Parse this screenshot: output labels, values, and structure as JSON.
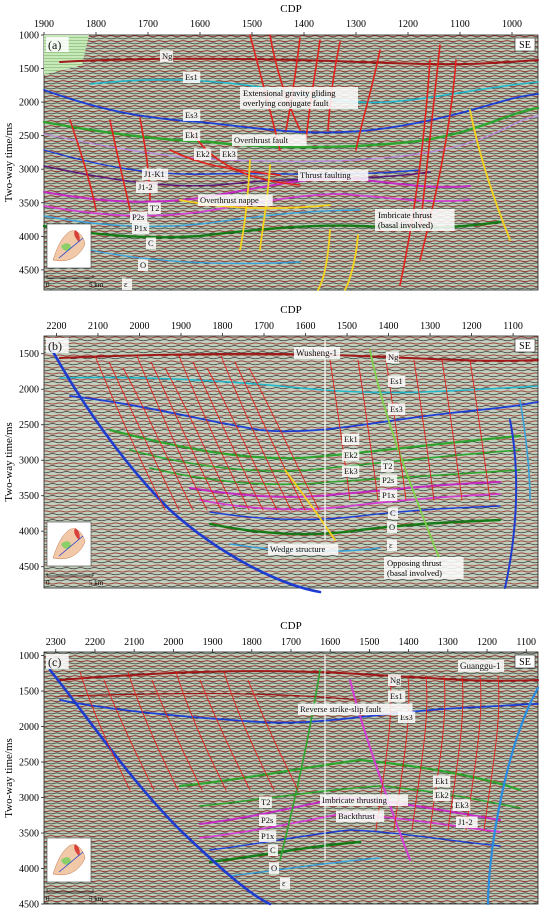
{
  "figure": {
    "y_axis_label": "Two-way time/ms",
    "x_axis_label": "CDP",
    "direction_label": "SE",
    "scale_label": "5 km",
    "scale_zero": "0"
  },
  "panels": [
    {
      "id": "a",
      "tag": "(a)",
      "cdp_ticks": [
        "1900",
        "1800",
        "1700",
        "1600",
        "1500",
        "1400",
        "1300",
        "1200",
        "1100",
        "1000"
      ],
      "time_ticks": [
        "1000",
        "1500",
        "2000",
        "2500",
        "3000",
        "3500",
        "4000",
        "4500"
      ],
      "horizon_labels": [
        "Ng",
        "Es1",
        "Es3",
        "Ek1",
        "Ek2",
        "Ek3",
        "J1-K1",
        "J1-2",
        "T2",
        "P2s",
        "P1x",
        "C",
        "O",
        "ε"
      ],
      "annotations": [
        "Extensional gravity gliding overlying conjugate fault",
        "Overthrust fault",
        "Thrust faulting",
        "Overthrust nappe",
        "Imbricate thrust (basal involved)"
      ]
    },
    {
      "id": "b",
      "tag": "(b)",
      "cdp_ticks": [
        "2200",
        "2100",
        "2000",
        "1900",
        "1800",
        "1700",
        "1600",
        "1500",
        "1400",
        "1300",
        "1200",
        "1100"
      ],
      "time_ticks": [
        "1500",
        "2000",
        "2500",
        "3000",
        "3500",
        "4000",
        "4500"
      ],
      "well": "Wusheng-1",
      "horizon_labels": [
        "Ng",
        "Es1",
        "Es3",
        "Ek1",
        "Ek2",
        "Ek3",
        "T2",
        "P2s",
        "P1x",
        "C",
        "O",
        "ε"
      ],
      "annotations": [
        "Wedge structure",
        "Opposing thrust (basal involved)"
      ]
    },
    {
      "id": "c",
      "tag": "(c)",
      "cdp_ticks": [
        "2300",
        "2200",
        "2100",
        "2000",
        "1900",
        "1800",
        "1700",
        "1600",
        "1500",
        "1400",
        "1300",
        "1200",
        "1100"
      ],
      "time_ticks": [
        "1000",
        "1500",
        "2000",
        "2500",
        "3000",
        "3500",
        "4000",
        "4500"
      ],
      "well": "Guanggu-1",
      "horizon_labels": [
        "Ng",
        "Es1",
        "Es3",
        "Ek1",
        "Ek2",
        "Ek3",
        "J1-2",
        "T2",
        "P2s",
        "P1x",
        "C",
        "O",
        "ε"
      ],
      "annotations": [
        "Reverse strike-slip fault",
        "Imbricate thrusting",
        "Backthrust"
      ]
    }
  ],
  "colors": {
    "seismic_bg": "#b9c9b4",
    "red_fault": "#e0231c",
    "yellow_fault": "#f4d21c",
    "Ng": "#a01818",
    "Es1": "#22b8cc",
    "Es3": "#1e3fd6",
    "Ek": "#2ea42e",
    "J": "#6a1a8a",
    "T2": "#c42ac4",
    "P": "#d23ed2",
    "C": "#167a16",
    "O": "#3aa0d8",
    "basement": "#1f3cd0"
  }
}
